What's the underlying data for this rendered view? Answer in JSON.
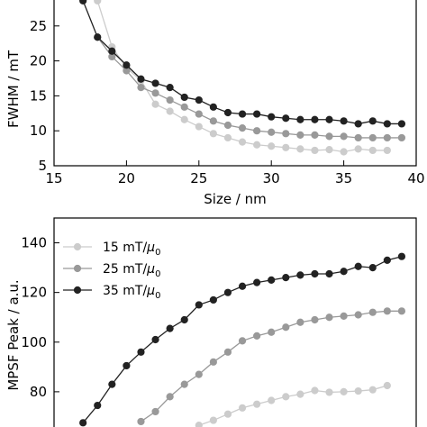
{
  "chart_data": [
    {
      "type": "line",
      "title": "",
      "xlabel": "Size / nm",
      "ylabel": "FWHM / mT",
      "xlim": [
        15,
        40
      ],
      "ylim": [
        5,
        30
      ],
      "xticks": [
        15,
        20,
        25,
        30,
        35,
        40
      ],
      "yticks": [
        5,
        10,
        15,
        20,
        25
      ],
      "grid": false,
      "series": [
        {
          "color": "#cccccc",
          "x": [
            18,
            19,
            20,
            21,
            22,
            23,
            24,
            25,
            26,
            27,
            28,
            29,
            30,
            31,
            32,
            33,
            34,
            35,
            36,
            37,
            38
          ],
          "y": [
            28.6,
            22.0,
            19.0,
            17.2,
            13.8,
            12.8,
            11.6,
            10.6,
            9.6,
            9.0,
            8.4,
            8.0,
            7.8,
            7.6,
            7.4,
            7.2,
            7.3,
            7.0,
            7.4,
            7.2,
            7.2
          ]
        },
        {
          "color": "#999999",
          "x": [
            18,
            19,
            20,
            21,
            22,
            23,
            24,
            25,
            26,
            27,
            28,
            29,
            30,
            31,
            32,
            33,
            34,
            35,
            36,
            37,
            38,
            39
          ],
          "y": [
            23.4,
            20.6,
            18.6,
            16.2,
            15.4,
            14.4,
            13.4,
            12.4,
            11.4,
            10.8,
            10.4,
            10.0,
            9.8,
            9.6,
            9.4,
            9.4,
            9.2,
            9.2,
            9.0,
            9.0,
            9.0,
            9.0
          ]
        },
        {
          "color": "#222222",
          "x": [
            17,
            18,
            19,
            20,
            21,
            22,
            23,
            24,
            25,
            26,
            27,
            28,
            29,
            30,
            31,
            32,
            33,
            34,
            35,
            36,
            37,
            38,
            39
          ],
          "y": [
            28.6,
            23.4,
            21.4,
            19.4,
            17.4,
            16.8,
            16.2,
            14.8,
            14.4,
            13.4,
            12.6,
            12.4,
            12.4,
            12.0,
            11.8,
            11.6,
            11.6,
            11.6,
            11.4,
            11.0,
            11.4,
            11.0,
            11.0
          ]
        }
      ]
    },
    {
      "type": "line",
      "title": "",
      "xlabel": "",
      "ylabel": "MPSF Peak / a.u.",
      "xlim": [
        15,
        40
      ],
      "ylim": [
        60,
        150
      ],
      "yticks": [
        80,
        100,
        120,
        140
      ],
      "grid": false,
      "legend": "top-left",
      "series": [
        {
          "name": "15 mT/μ₀",
          "name_main": "15 mT/",
          "name_sym": "μ",
          "name_sub": "0",
          "color": "#cccccc",
          "x": [
            25,
            26,
            27,
            28,
            29,
            30,
            31,
            32,
            33,
            34,
            35,
            36,
            37,
            38
          ],
          "y": [
            66.5,
            68.5,
            71.0,
            73.5,
            75.0,
            76.5,
            78.0,
            79.0,
            80.5,
            79.8,
            80.0,
            80.3,
            80.8,
            82.5
          ]
        },
        {
          "name": "25 mT/μ₀",
          "name_main": "25 mT/",
          "name_sym": "μ",
          "name_sub": "0",
          "color": "#999999",
          "x": [
            21,
            22,
            23,
            24,
            25,
            26,
            27,
            28,
            29,
            30,
            31,
            32,
            33,
            34,
            35,
            36,
            37,
            38,
            39
          ],
          "y": [
            68.0,
            72.0,
            78.0,
            83.0,
            87.0,
            92.0,
            96.0,
            100.5,
            102.5,
            104.0,
            106.0,
            108.0,
            109.0,
            110.0,
            110.5,
            111.0,
            112.0,
            112.5,
            112.5
          ]
        },
        {
          "name": "35 mT/μ₀",
          "name_main": "35 mT/",
          "name_sym": "μ",
          "name_sub": "0",
          "color": "#222222",
          "x": [
            17,
            18,
            19,
            20,
            21,
            22,
            23,
            24,
            25,
            26,
            27,
            28,
            29,
            30,
            31,
            32,
            33,
            34,
            35,
            36,
            37,
            38,
            39
          ],
          "y": [
            67.5,
            74.5,
            83.0,
            90.5,
            96.0,
            101.0,
            105.5,
            109.0,
            115.0,
            117.0,
            120.0,
            122.5,
            124.0,
            125.0,
            126.0,
            127.0,
            127.5,
            127.5,
            128.5,
            130.5,
            130.0,
            133.0,
            134.5
          ]
        }
      ]
    }
  ]
}
